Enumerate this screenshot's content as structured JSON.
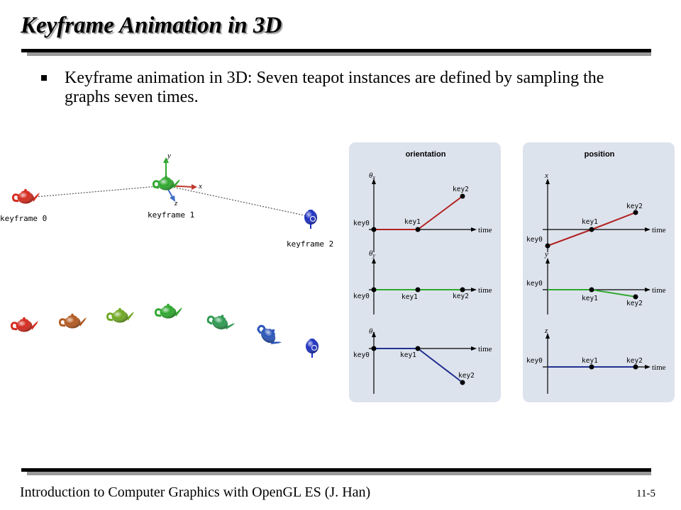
{
  "title": "Keyframe Animation in 3D",
  "bullet": "Keyframe animation in 3D: Seven teapot instances are defined by sampling the graphs seven times.",
  "footer": {
    "text": "Introduction to Computer Graphics with OpenGL ES (J. Han)",
    "page": "11-5"
  },
  "figure": {
    "keyframe_labels": [
      "keyframe 0",
      "keyframe 1",
      "keyframe 2"
    ],
    "axis_labels": {
      "x": "x",
      "y": "y",
      "z": "z"
    },
    "teapot_colors": [
      "#d42a1e",
      "#b35a22",
      "#6fa823",
      "#2fa82e",
      "#2f9a52",
      "#2a55b8",
      "#1c2fc0"
    ],
    "panels": {
      "orientation": {
        "title": "orientation",
        "time_label": "time",
        "graphs": [
          {
            "axis": "θx",
            "color": "#b22222",
            "keys": [
              "key0",
              "key1",
              "key2"
            ]
          },
          {
            "axis": "θy",
            "color": "#2fa82e",
            "keys": [
              "key0",
              "key1",
              "key2"
            ]
          },
          {
            "axis": "θz",
            "color": "#22308f",
            "keys": [
              "key0",
              "key1",
              "key2"
            ]
          }
        ]
      },
      "position": {
        "title": "position",
        "time_label": "time",
        "graphs": [
          {
            "axis": "x",
            "color": "#b22222",
            "keys": [
              "key0",
              "key1",
              "key2"
            ]
          },
          {
            "axis": "y",
            "color": "#2fa82e",
            "keys": [
              "key0",
              "key1",
              "key2"
            ]
          },
          {
            "axis": "z",
            "color": "#22308f",
            "keys": [
              "key0",
              "key1",
              "key2"
            ]
          }
        ]
      }
    }
  }
}
